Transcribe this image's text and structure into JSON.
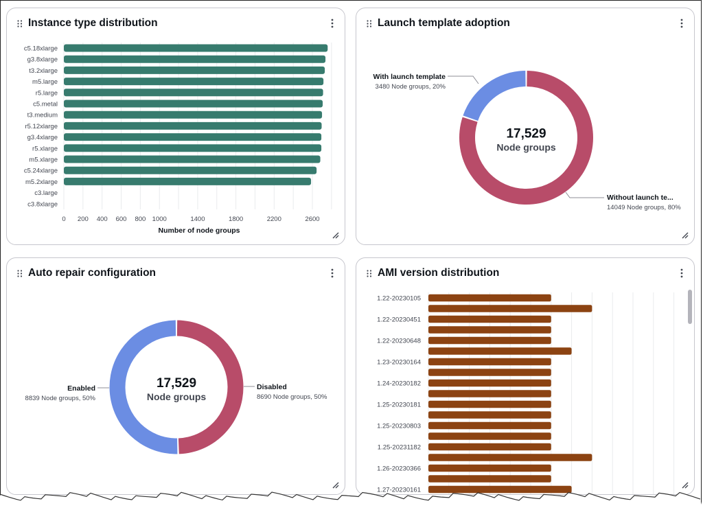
{
  "widgets": [
    {
      "title": "Instance type distribution"
    },
    {
      "title": "Launch template adoption"
    },
    {
      "title": "Auto repair configuration"
    },
    {
      "title": "AMI version distribution"
    }
  ],
  "chart_data": [
    {
      "type": "bar",
      "orientation": "horizontal",
      "title": "Instance type distribution",
      "xlabel": "Number of node groups",
      "categories": [
        "c5.18xlarge",
        "g3.8xlarge",
        "t3.2xlarge",
        "m5.large",
        "r5.large",
        "c5.metal",
        "t3.medium",
        "r5.12xlarge",
        "g3.4xlarge",
        "r5.xlarge",
        "m5.xlarge",
        "c5.24xlarge",
        "m5.2xlarge",
        "c3.large",
        "c3.8xlarge"
      ],
      "values": [
        2760,
        2737,
        2730,
        2716,
        2712,
        2708,
        2701,
        2697,
        2694,
        2694,
        2683,
        2644,
        2586,
        0,
        0
      ],
      "xticks": [
        "0",
        "200",
        "400",
        "600",
        "800",
        "1000",
        "1400",
        "1800",
        "2200",
        "2600"
      ],
      "xlim": [
        0,
        2800
      ],
      "grid": true,
      "color": "#377b6e"
    },
    {
      "type": "pie",
      "variant": "donut",
      "title": "Launch template adoption",
      "center_value": "17,529",
      "center_label": "Node groups",
      "slices": [
        {
          "label": "With launch template",
          "detail": "3480 Node groups, 20%",
          "value": 3480,
          "color": "#6b8de3"
        },
        {
          "label": "Without launch te...",
          "detail": "14049 Node groups, 80%",
          "value": 14049,
          "color": "#b84c69"
        }
      ]
    },
    {
      "type": "pie",
      "variant": "donut",
      "title": "Auto repair configuration",
      "center_value": "17,529",
      "center_label": "Node groups",
      "slices": [
        {
          "label": "Enabled",
          "detail": "8839 Node groups, 50%",
          "value": 8839,
          "color": "#6b8de3"
        },
        {
          "label": "Disabled",
          "detail": "8690 Node groups, 50%",
          "value": 8690,
          "color": "#b84c69"
        }
      ]
    },
    {
      "type": "bar",
      "orientation": "horizontal",
      "title": "AMI version distribution",
      "categories": [
        "1.22-20230105",
        "",
        "1.22-20230451",
        "",
        "1.22-20230648",
        "",
        "1.23-20230164",
        "",
        "1.24-20230182",
        "",
        "1.25-20230181",
        "",
        "1.25-20230803",
        "",
        "1.25-20231182",
        "",
        "1.26-20230366",
        "",
        "1.27-20230161"
      ],
      "values": [
        6,
        8,
        6,
        6,
        6,
        7,
        6,
        6,
        6,
        6,
        6,
        6,
        6,
        6,
        6,
        8,
        6,
        6,
        7
      ],
      "xlim": [
        0,
        12
      ],
      "grid": true,
      "color": "#8c4312"
    }
  ]
}
